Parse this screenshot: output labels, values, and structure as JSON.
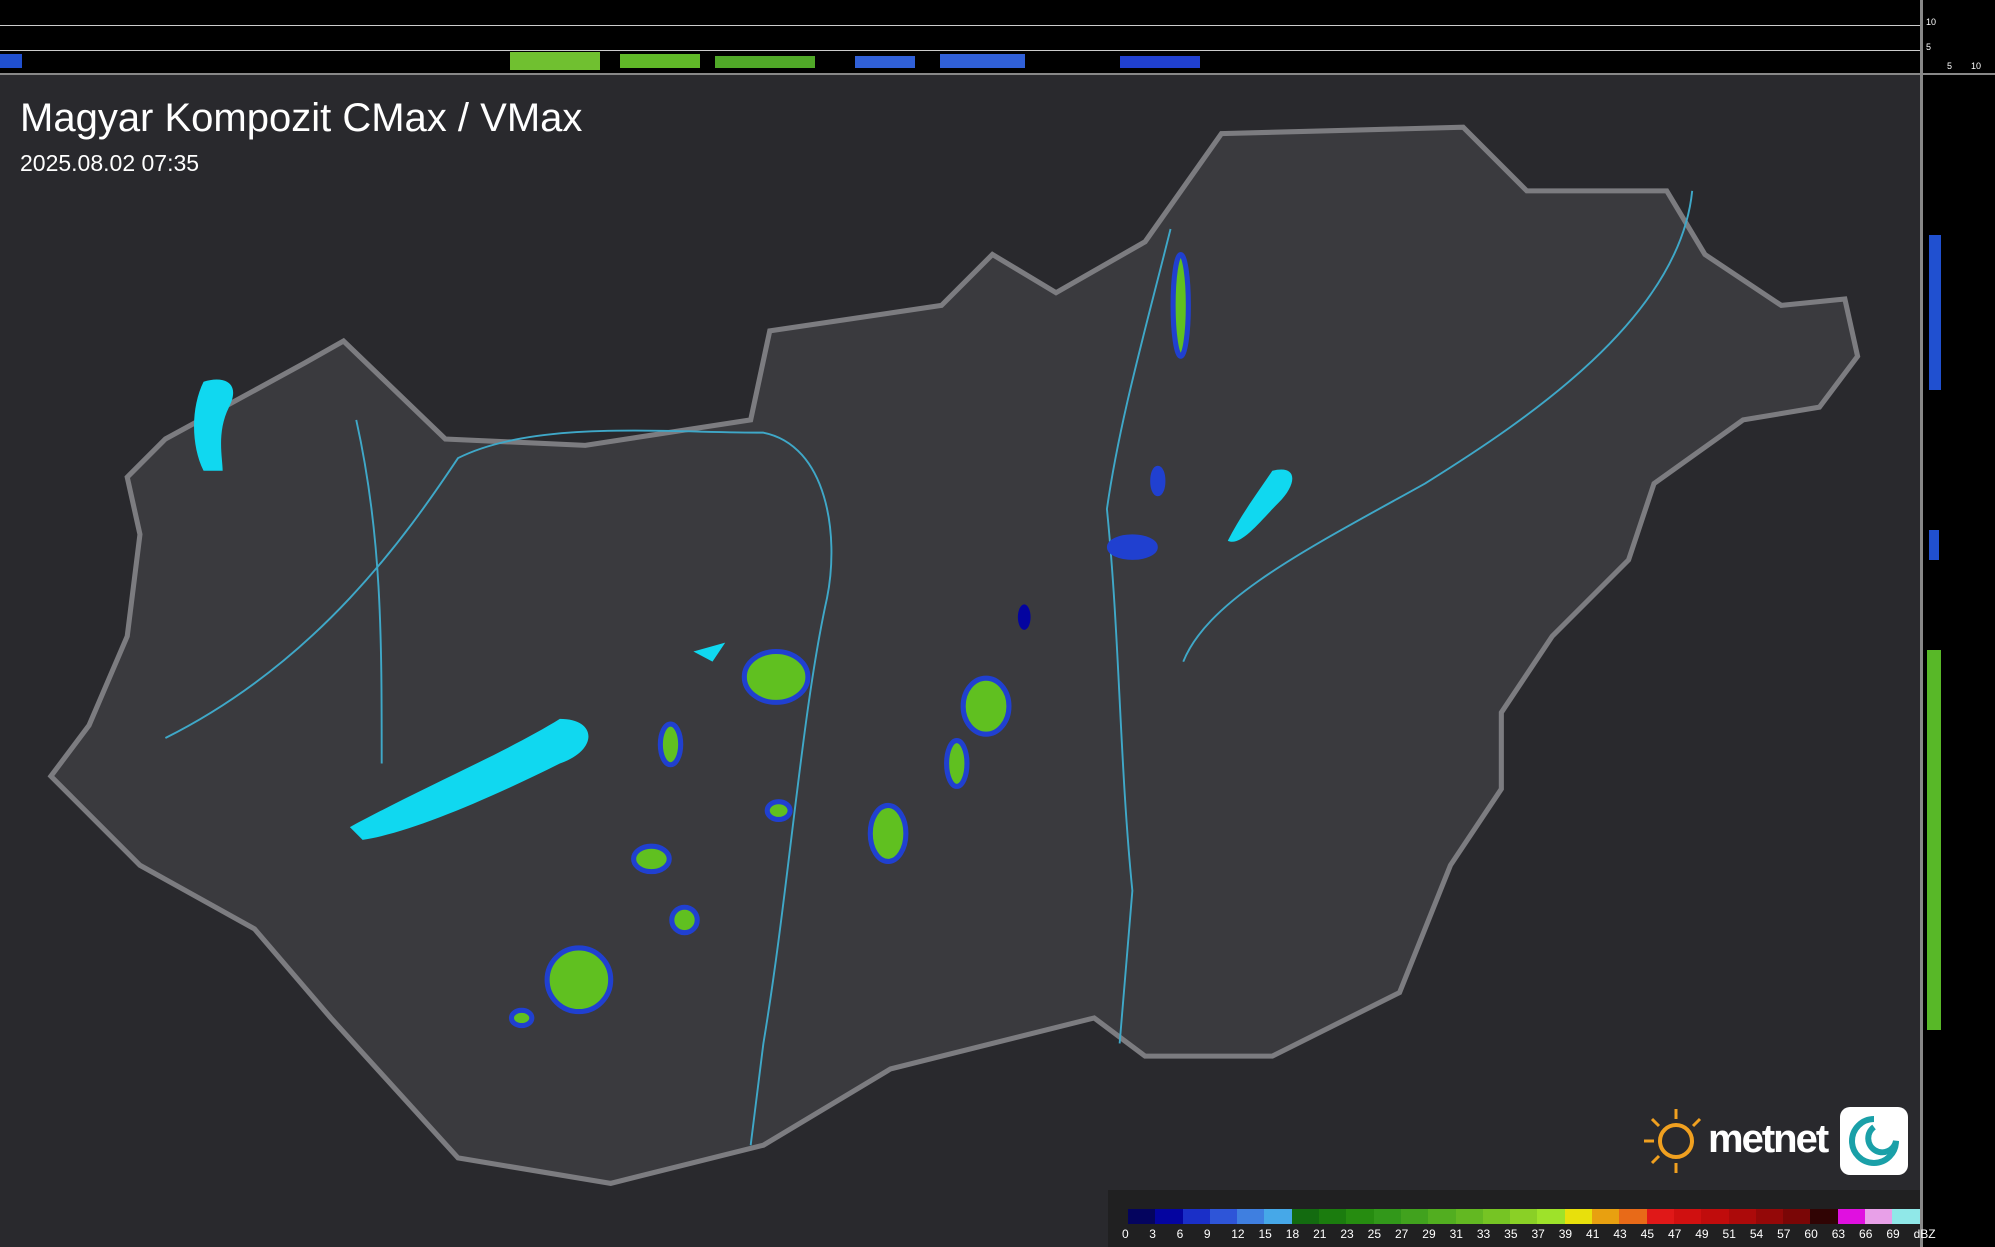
{
  "header": {
    "title": "Magyar Kompozit CMax / VMax",
    "timestamp": "2025.08.02 07:35"
  },
  "profile_axes": {
    "top_ticks": [
      "10",
      "5"
    ],
    "right_ticks": [
      "5",
      "10"
    ]
  },
  "legend": {
    "unit": "dBZ",
    "labels": [
      "0",
      "3",
      "6",
      "9",
      "12",
      "15",
      "18",
      "21",
      "23",
      "25",
      "27",
      "29",
      "31",
      "33",
      "35",
      "37",
      "39",
      "41",
      "43",
      "45",
      "47",
      "49",
      "51",
      "54",
      "57",
      "60",
      "63",
      "66",
      "69"
    ],
    "colors": [
      "#04045e",
      "#0404a0",
      "#1a2fc8",
      "#2e55d8",
      "#3f7fe0",
      "#46a8e8",
      "#136b10",
      "#1b7c0e",
      "#268c10",
      "#32981a",
      "#41a21e",
      "#52ae20",
      "#63b822",
      "#76c424",
      "#8ad026",
      "#9ee22a",
      "#e8e00c",
      "#e8a010",
      "#e86a18",
      "#e01818",
      "#d01010",
      "#c00c0c",
      "#ac0a0a",
      "#940808",
      "#7a0606",
      "#300404",
      "#e010e0",
      "#e8a0e8",
      "#90e8e8"
    ]
  },
  "logo": {
    "brand": "metnet"
  },
  "colors": {
    "background": "#2a2a2e",
    "country_fill": "#3a3a3e",
    "border": "#7c7c80",
    "rivers": "#3fa8c8",
    "lakes": "#10d8f0",
    "radar_low": "#2040d0",
    "radar_mid": "#60c020"
  }
}
